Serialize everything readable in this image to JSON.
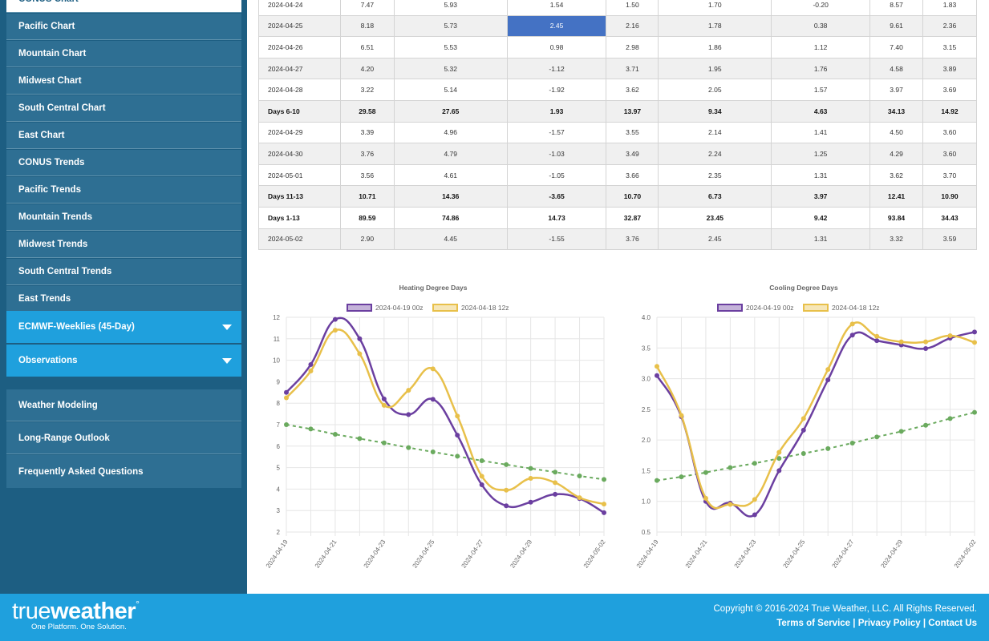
{
  "sidebar": {
    "top_items": [
      {
        "label": "CONUS Chart"
      },
      {
        "label": "Pacific Chart"
      },
      {
        "label": "Mountain Chart"
      },
      {
        "label": "Midwest Chart"
      },
      {
        "label": "South Central Chart"
      },
      {
        "label": "East Chart"
      },
      {
        "label": "CONUS Trends"
      },
      {
        "label": "Pacific Trends"
      },
      {
        "label": "Mountain Trends"
      },
      {
        "label": "Midwest Trends"
      },
      {
        "label": "South Central Trends"
      },
      {
        "label": "East Trends"
      }
    ],
    "expandable": [
      {
        "label": "ECMWF-Weeklies (45-Day)"
      },
      {
        "label": "Observations"
      }
    ],
    "lower_items": [
      {
        "label": "Weather Modeling"
      },
      {
        "label": "Long-Range Outlook"
      },
      {
        "label": "Frequently Asked Questions"
      }
    ]
  },
  "table": {
    "rows": [
      {
        "cells": [
          "2024-04-24",
          "7.47",
          "5.93",
          "1.54",
          "1.50",
          "1.70",
          "-0.20",
          "8.57",
          "1.83"
        ],
        "type": "normal"
      },
      {
        "cells": [
          "2024-04-25",
          "8.18",
          "5.73",
          "2.45",
          "2.16",
          "1.78",
          "0.38",
          "9.61",
          "2.36"
        ],
        "type": "alt",
        "highlight_col": 3
      },
      {
        "cells": [
          "2024-04-26",
          "6.51",
          "5.53",
          "0.98",
          "2.98",
          "1.86",
          "1.12",
          "7.40",
          "3.15"
        ],
        "type": "normal"
      },
      {
        "cells": [
          "2024-04-27",
          "4.20",
          "5.32",
          "-1.12",
          "3.71",
          "1.95",
          "1.76",
          "4.58",
          "3.89"
        ],
        "type": "alt"
      },
      {
        "cells": [
          "2024-04-28",
          "3.22",
          "5.14",
          "-1.92",
          "3.62",
          "2.05",
          "1.57",
          "3.97",
          "3.69"
        ],
        "type": "normal"
      },
      {
        "cells": [
          "Days 6-10",
          "29.58",
          "27.65",
          "1.93",
          "13.97",
          "9.34",
          "4.63",
          "34.13",
          "14.92"
        ],
        "type": "alt bold"
      },
      {
        "cells": [
          "2024-04-29",
          "3.39",
          "4.96",
          "-1.57",
          "3.55",
          "2.14",
          "1.41",
          "4.50",
          "3.60"
        ],
        "type": "normal"
      },
      {
        "cells": [
          "2024-04-30",
          "3.76",
          "4.79",
          "-1.03",
          "3.49",
          "2.24",
          "1.25",
          "4.29",
          "3.60"
        ],
        "type": "alt"
      },
      {
        "cells": [
          "2024-05-01",
          "3.56",
          "4.61",
          "-1.05",
          "3.66",
          "2.35",
          "1.31",
          "3.62",
          "3.70"
        ],
        "type": "normal"
      },
      {
        "cells": [
          "Days 11-13",
          "10.71",
          "14.36",
          "-3.65",
          "10.70",
          "6.73",
          "3.97",
          "12.41",
          "10.90"
        ],
        "type": "alt bold"
      },
      {
        "cells": [
          "Days 1-13",
          "89.59",
          "74.86",
          "14.73",
          "32.87",
          "23.45",
          "9.42",
          "93.84",
          "34.43"
        ],
        "type": "normal bold"
      },
      {
        "cells": [
          "2024-05-02",
          "2.90",
          "4.45",
          "-1.55",
          "3.76",
          "2.45",
          "1.31",
          "3.32",
          "3.59"
        ],
        "type": "alt"
      }
    ],
    "highlight_color": "#4472c4"
  },
  "chart_data": [
    {
      "type": "line",
      "title": "Heating Degree Days",
      "x": [
        "2024-04-19",
        "2024-04-20",
        "2024-04-21",
        "2024-04-22",
        "2024-04-23",
        "2024-04-24",
        "2024-04-25",
        "2024-04-26",
        "2024-04-27",
        "2024-04-28",
        "2024-04-29",
        "2024-04-30",
        "2024-05-01",
        "2024-05-02"
      ],
      "x_tick_labels": [
        "2024-04-19",
        "2024-04-21",
        "2024-04-23",
        "2024-04-25",
        "2024-04-27",
        "2024-04-29",
        "2024-05-02"
      ],
      "ylim": [
        2,
        12
      ],
      "yticks": [
        2,
        3,
        4,
        5,
        6,
        7,
        8,
        9,
        10,
        11,
        12
      ],
      "grid": true,
      "legend_position": "top",
      "series": [
        {
          "name": "2024-04-19 00z",
          "color": "#6b3fa0",
          "values": [
            8.5,
            9.8,
            11.9,
            11.0,
            8.2,
            7.47,
            8.18,
            6.51,
            4.2,
            3.22,
            3.39,
            3.76,
            3.56,
            2.9
          ]
        },
        {
          "name": "2024-04-18 12z",
          "color": "#e8c04a",
          "values": [
            8.25,
            9.5,
            11.4,
            10.3,
            7.9,
            8.6,
            9.6,
            7.4,
            4.6,
            3.95,
            4.5,
            4.3,
            3.6,
            3.3
          ]
        },
        {
          "name": "",
          "color": "#6aaa5e",
          "dashed": true,
          "values": [
            7.0,
            6.8,
            6.55,
            6.35,
            6.15,
            5.93,
            5.73,
            5.53,
            5.32,
            5.14,
            4.96,
            4.79,
            4.61,
            4.45
          ]
        }
      ]
    },
    {
      "type": "line",
      "title": "Cooling Degree Days",
      "x": [
        "2024-04-19",
        "2024-04-20",
        "2024-04-21",
        "2024-04-22",
        "2024-04-23",
        "2024-04-24",
        "2024-04-25",
        "2024-04-26",
        "2024-04-27",
        "2024-04-28",
        "2024-04-29",
        "2024-04-30",
        "2024-05-01",
        "2024-05-02"
      ],
      "x_tick_labels": [
        "2024-04-19",
        "2024-04-21",
        "2024-04-23",
        "2024-04-25",
        "2024-04-27",
        "2024-04-29",
        "2024-05-02"
      ],
      "ylim": [
        0.5,
        4.0
      ],
      "yticks": [
        "0.5",
        "1.0",
        "1.5",
        "2.0",
        "2.5",
        "3.0",
        "3.5",
        "4.0"
      ],
      "grid": true,
      "legend_position": "top",
      "series": [
        {
          "name": "2024-04-19 00z",
          "color": "#6b3fa0",
          "values": [
            3.05,
            2.38,
            1.0,
            0.97,
            0.78,
            1.5,
            2.16,
            2.98,
            3.71,
            3.62,
            3.55,
            3.49,
            3.66,
            3.76
          ]
        },
        {
          "name": "2024-04-18 12z",
          "color": "#e8c04a",
          "values": [
            3.2,
            2.4,
            1.05,
            0.95,
            1.03,
            1.8,
            2.35,
            3.15,
            3.89,
            3.69,
            3.6,
            3.6,
            3.7,
            3.59
          ]
        },
        {
          "name": "",
          "color": "#6aaa5e",
          "dashed": true,
          "values": [
            1.34,
            1.4,
            1.47,
            1.55,
            1.62,
            1.7,
            1.78,
            1.86,
            1.95,
            2.05,
            2.14,
            2.24,
            2.35,
            2.45
          ]
        }
      ]
    }
  ],
  "footer": {
    "copyright": "Copyright © 2016-2024 True Weather, LLC. All Rights Reserved.",
    "links": [
      "Terms of Service",
      "Privacy Policy",
      "Contact Us"
    ],
    "separator": " | ",
    "logo_thin": "true",
    "logo_bold": "weather",
    "logo_tagline": "One Platform. One Solution."
  }
}
